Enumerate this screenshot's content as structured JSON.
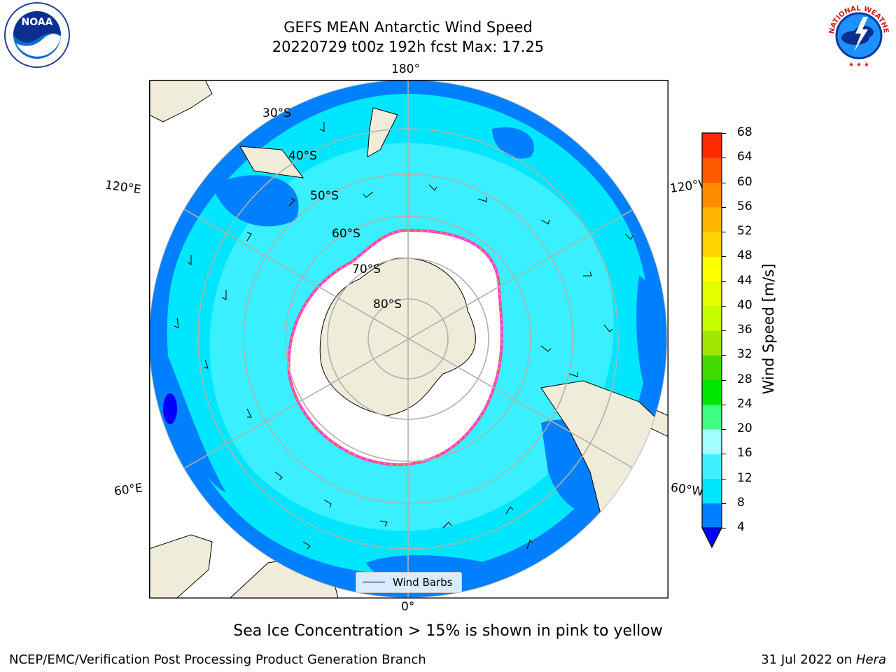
{
  "header": {
    "title_line1": "GEFS MEAN Antarctic Wind Speed",
    "title_line2": "20220729 t00z 192h fcst   Max: 17.25"
  },
  "logos": {
    "noa_text": "NOAA",
    "nws_text": "NATIONAL WEATHER SERVICE"
  },
  "map": {
    "lon_labels": {
      "top": "180°",
      "left_upper": "120°E",
      "right_upper": "120°W",
      "left_lower": "60°E",
      "right_lower": "60°W",
      "bottom": "0°"
    },
    "lat_labels": [
      "30°S",
      "40°S",
      "50°S",
      "60°S",
      "70°S",
      "80°S"
    ],
    "legend_label": "Wind Barbs"
  },
  "colorbar": {
    "label": "Wind Speed [m/s]",
    "ticks": [
      "4",
      "8",
      "12",
      "16",
      "20",
      "24",
      "28",
      "32",
      "36",
      "40",
      "44",
      "48",
      "52",
      "56",
      "60",
      "64",
      "68"
    ],
    "colors": [
      "#0080ff",
      "#00e6ff",
      "#40f0ff",
      "#a0ffff",
      "#40ff80",
      "#00e600",
      "#40d900",
      "#a0e600",
      "#c8ff00",
      "#e6ff00",
      "#ffff00",
      "#ffd200",
      "#ffb400",
      "#ff8c00",
      "#ff5a00",
      "#ff2800"
    ],
    "extend_color": "#0000ff"
  },
  "colors": {
    "ocean_low": "#0080ff",
    "ocean_mid": "#00e6ff",
    "ocean_high": "#60f5ff",
    "land": "#efecda",
    "ice": "#ffffff",
    "ice_edge": "#ff40c0"
  },
  "footer": {
    "note": "Sea Ice Concentration > 15% is shown in pink to yellow",
    "credit": "NCEP/EMC/Verification Post Processing Product Generation Branch",
    "date_prefix": "31 Jul 2022 on ",
    "date_machine": "Hera"
  }
}
